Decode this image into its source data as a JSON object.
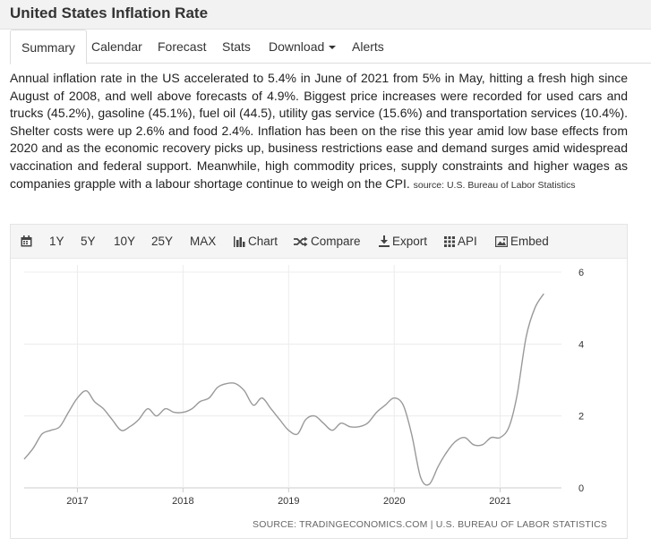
{
  "page": {
    "title": "United States Inflation Rate"
  },
  "tabs": [
    {
      "label": "Summary",
      "active": true
    },
    {
      "label": "Calendar"
    },
    {
      "label": "Forecast"
    },
    {
      "label": "Stats"
    },
    {
      "label": "Download"
    },
    {
      "label": "Alerts"
    }
  ],
  "summary": {
    "text": "Annual inflation rate in the US accelerated to 5.4% in June of 2021 from 5% in May, hitting a fresh high since August of 2008, and well above forecasts of 4.9%. Biggest price increases were recorded for used cars and trucks (45.2%), gasoline (45.1%), fuel oil (44.5), utility gas service (15.6%) and transportation services (10.4%). Shelter costs were up 2.6% and food 2.4%. Inflation has been on the rise this year amid low base effects from 2020 and as the economic recovery picks up, business restrictions ease and demand surges amid widespread vaccination and federal support. Meanwhile, high commodity prices, supply constraints and higher wages as companies grapple with a labour shortage continue to weigh on the CPI.",
    "source": "source: U.S. Bureau of Labor Statistics"
  },
  "toolbar": {
    "calendar_icon": "calendar-icon",
    "ranges": [
      "1Y",
      "5Y",
      "10Y",
      "25Y",
      "MAX"
    ],
    "chart_label": "Chart",
    "compare_label": "Compare",
    "export_label": "Export",
    "api_label": "API",
    "embed_label": "Embed"
  },
  "chart_data": {
    "type": "line",
    "title": "",
    "xlabel": "",
    "ylabel": "",
    "x_ticks": [
      "2017",
      "2018",
      "2019",
      "2020",
      "2021"
    ],
    "y_ticks": [
      0,
      2,
      4,
      6
    ],
    "ylim": [
      0,
      6
    ],
    "grid": true,
    "line_color": "#999999",
    "source_text": "SOURCE: TRADINGECONOMICS.COM | U.S. BUREAU OF LABOR STATISTICS",
    "series": [
      {
        "x": [
          "2016-07",
          "2016-08",
          "2016-09",
          "2016-10",
          "2016-11",
          "2016-12",
          "2017-01",
          "2017-02",
          "2017-03",
          "2017-04",
          "2017-05",
          "2017-06",
          "2017-07",
          "2017-08",
          "2017-09",
          "2017-10",
          "2017-11",
          "2017-12",
          "2018-01",
          "2018-02",
          "2018-03",
          "2018-04",
          "2018-05",
          "2018-06",
          "2018-07",
          "2018-08",
          "2018-09",
          "2018-10",
          "2018-11",
          "2018-12",
          "2019-01",
          "2019-02",
          "2019-03",
          "2019-04",
          "2019-05",
          "2019-06",
          "2019-07",
          "2019-08",
          "2019-09",
          "2019-10",
          "2019-11",
          "2019-12",
          "2020-01",
          "2020-02",
          "2020-03",
          "2020-04",
          "2020-05",
          "2020-06",
          "2020-07",
          "2020-08",
          "2020-09",
          "2020-10",
          "2020-11",
          "2020-12",
          "2021-01",
          "2021-02",
          "2021-03",
          "2021-04",
          "2021-05",
          "2021-06"
        ],
        "values": [
          0.8,
          1.1,
          1.5,
          1.6,
          1.7,
          2.1,
          2.5,
          2.7,
          2.4,
          2.2,
          1.9,
          1.6,
          1.7,
          1.9,
          2.2,
          2.0,
          2.2,
          2.1,
          2.1,
          2.2,
          2.4,
          2.5,
          2.8,
          2.9,
          2.9,
          2.7,
          2.3,
          2.5,
          2.2,
          1.9,
          1.6,
          1.5,
          1.9,
          2.0,
          1.8,
          1.6,
          1.8,
          1.7,
          1.7,
          1.8,
          2.1,
          2.3,
          2.5,
          2.3,
          1.5,
          0.3,
          0.1,
          0.6,
          1.0,
          1.3,
          1.4,
          1.2,
          1.2,
          1.4,
          1.4,
          1.7,
          2.6,
          4.2,
          5.0,
          5.4
        ]
      }
    ]
  }
}
